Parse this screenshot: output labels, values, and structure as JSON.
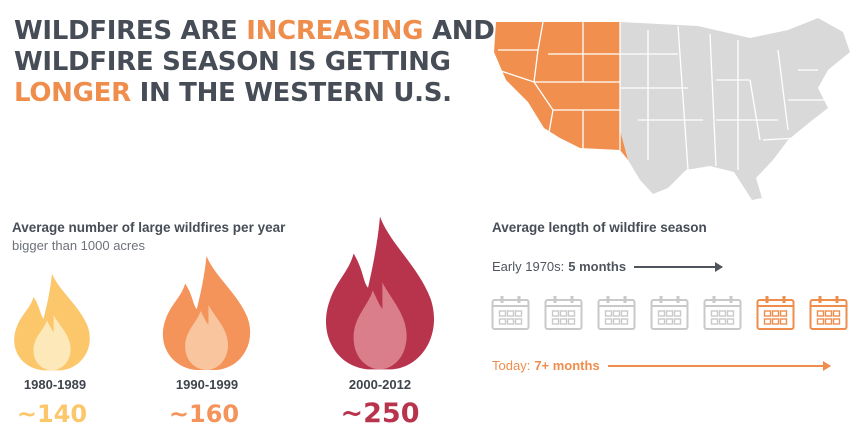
{
  "headline": {
    "line1_a": "WILDFIRES ARE ",
    "line1_b": "INCREASING",
    "line1_c": " AND",
    "line2": "WILDFIRE SEASON IS GETTING",
    "line3_a": "LONGER",
    "line3_b": " IN THE WESTERN U.S."
  },
  "colors": {
    "text": "#474d56",
    "accent": "#ef8d4d",
    "map_west": "#f08f4e",
    "map_other": "#d9d9d9",
    "calendar_inactive": "#c9c9c9",
    "calendar_active": "#ef8d4d"
  },
  "map": {
    "icon": "us-map-icon",
    "highlighted_region": "Western U.S."
  },
  "fires": {
    "title": "Average number of large wildfires per year",
    "subtitle": "bigger than 1000 acres",
    "items": [
      {
        "period": "1980-1989",
        "count": "~140",
        "value": 140,
        "color": "#fcc76b",
        "inner": "#fde8b9",
        "icon": "flame-icon"
      },
      {
        "period": "1990-1999",
        "count": "~160",
        "value": 160,
        "color": "#f4935a",
        "inner": "#f9c59f",
        "icon": "flame-icon"
      },
      {
        "period": "2000-2012",
        "count": "~250",
        "value": 250,
        "color": "#b8344d",
        "inner": "#d97e8a",
        "icon": "flame-icon"
      }
    ]
  },
  "season": {
    "title": "Average length of wildfire season",
    "early_label": "Early 1970s: ",
    "early_value": "5 months",
    "today_label": "Today: ",
    "today_value": "7+ months",
    "calendars": [
      {
        "active": false,
        "icon": "calendar-icon"
      },
      {
        "active": false,
        "icon": "calendar-icon"
      },
      {
        "active": false,
        "icon": "calendar-icon"
      },
      {
        "active": false,
        "icon": "calendar-icon"
      },
      {
        "active": false,
        "icon": "calendar-icon"
      },
      {
        "active": true,
        "icon": "calendar-icon"
      },
      {
        "active": true,
        "icon": "calendar-icon"
      }
    ]
  }
}
